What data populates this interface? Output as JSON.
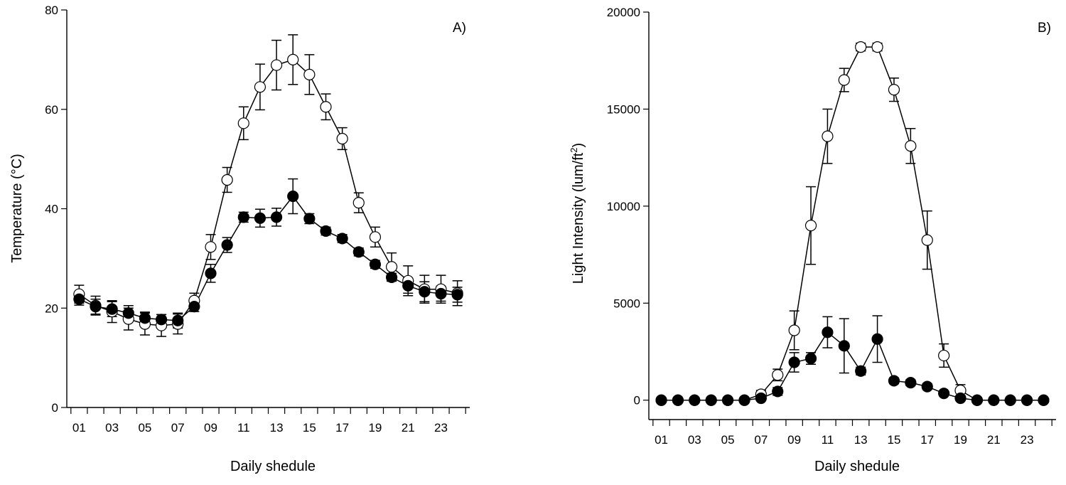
{
  "colors": {
    "filled": "#000000",
    "open": "#ffffff",
    "axis": "#000000"
  },
  "chart_data": [
    {
      "type": "line",
      "panel_label": "A)",
      "xlabel": "Daily shedule",
      "ylabel": "Temperature (°C)",
      "x": [
        1,
        2,
        3,
        4,
        5,
        6,
        7,
        8,
        9,
        10,
        11,
        12,
        13,
        14,
        15,
        16,
        17,
        18,
        19,
        20,
        21,
        22,
        23,
        24
      ],
      "xtick_labels": [
        "01",
        "03",
        "05",
        "07",
        "09",
        "11",
        "13",
        "15",
        "17",
        "19",
        "21",
        "23"
      ],
      "xlim": [
        0.25,
        24.75
      ],
      "ylim": [
        0,
        80
      ],
      "yticks": [
        0,
        20,
        40,
        60,
        80
      ],
      "ytick_labels": [
        "0",
        "20",
        "40",
        "60",
        "80"
      ],
      "series": [
        {
          "name": "open circles",
          "marker": "open",
          "values": [
            22.8,
            20.5,
            19.3,
            17.8,
            16.8,
            16.5,
            16.8,
            21.5,
            32.3,
            45.8,
            57.2,
            64.5,
            68.9,
            70.0,
            67.0,
            60.5,
            54.1,
            41.2,
            34.3,
            28.3,
            25.5,
            23.8,
            23.8,
            23.0
          ],
          "errors": [
            1.8,
            1.9,
            2.2,
            2.2,
            2.2,
            2.2,
            2.0,
            1.5,
            2.5,
            2.5,
            3.3,
            4.6,
            5.0,
            5.0,
            4.0,
            2.6,
            2.2,
            2.0,
            2.0,
            2.8,
            3.0,
            2.8,
            2.8,
            2.5
          ]
        },
        {
          "name": "filled circles",
          "marker": "filled",
          "values": [
            21.8,
            20.3,
            19.8,
            19.0,
            18.0,
            17.7,
            17.5,
            20.3,
            27.0,
            32.7,
            38.3,
            38.1,
            38.3,
            42.5,
            38.0,
            35.5,
            34.0,
            31.3,
            28.8,
            26.2,
            24.5,
            23.3,
            22.9,
            22.7
          ],
          "errors": [
            1.2,
            1.5,
            1.5,
            1.5,
            1.2,
            1.0,
            1.5,
            1.0,
            1.8,
            1.5,
            1.0,
            1.8,
            1.8,
            3.5,
            1.0,
            0.8,
            0.8,
            0.8,
            0.8,
            0.8,
            1.5,
            2.0,
            1.5,
            1.5
          ]
        }
      ]
    },
    {
      "type": "line",
      "panel_label": "B)",
      "xlabel": "Daily shedule",
      "ylabel": "Light Intensity (lum/ft",
      "ylabel_sup": "2",
      "ylabel_tail": ")",
      "x": [
        1,
        2,
        3,
        4,
        5,
        6,
        7,
        8,
        9,
        10,
        11,
        12,
        13,
        14,
        15,
        16,
        17,
        18,
        19,
        20,
        21,
        22,
        23,
        24
      ],
      "xtick_labels": [
        "01",
        "03",
        "05",
        "07",
        "09",
        "11",
        "13",
        "15",
        "17",
        "19",
        "21",
        "23"
      ],
      "xlim": [
        0.25,
        24.75
      ],
      "ylim": [
        -1000,
        20000
      ],
      "yticks": [
        0,
        5000,
        10000,
        15000,
        20000
      ],
      "ytick_labels": [
        "0",
        "5000",
        "10000",
        "15000",
        "20000"
      ],
      "series": [
        {
          "name": "open circles",
          "marker": "open",
          "values": [
            0,
            0,
            0,
            0,
            0,
            0,
            300,
            1300,
            3600,
            9000,
            13600,
            16500,
            18200,
            18200,
            16000,
            13100,
            8250,
            2300,
            500,
            0,
            0,
            0,
            0,
            0
          ],
          "errors": [
            0,
            0,
            0,
            0,
            0,
            0,
            200,
            300,
            1000,
            2000,
            1400,
            600,
            200,
            200,
            600,
            900,
            1500,
            600,
            300,
            0,
            0,
            0,
            0,
            0
          ]
        },
        {
          "name": "filled circles",
          "marker": "filled",
          "values": [
            0,
            0,
            0,
            0,
            0,
            0,
            100,
            450,
            1950,
            2150,
            3500,
            2800,
            1500,
            3150,
            1000,
            900,
            700,
            350,
            100,
            0,
            0,
            0,
            0,
            0
          ],
          "errors": [
            0,
            0,
            0,
            0,
            0,
            0,
            100,
            200,
            500,
            300,
            800,
            1400,
            200,
            1200,
            150,
            150,
            150,
            100,
            50,
            0,
            0,
            0,
            0,
            0
          ]
        }
      ]
    }
  ]
}
